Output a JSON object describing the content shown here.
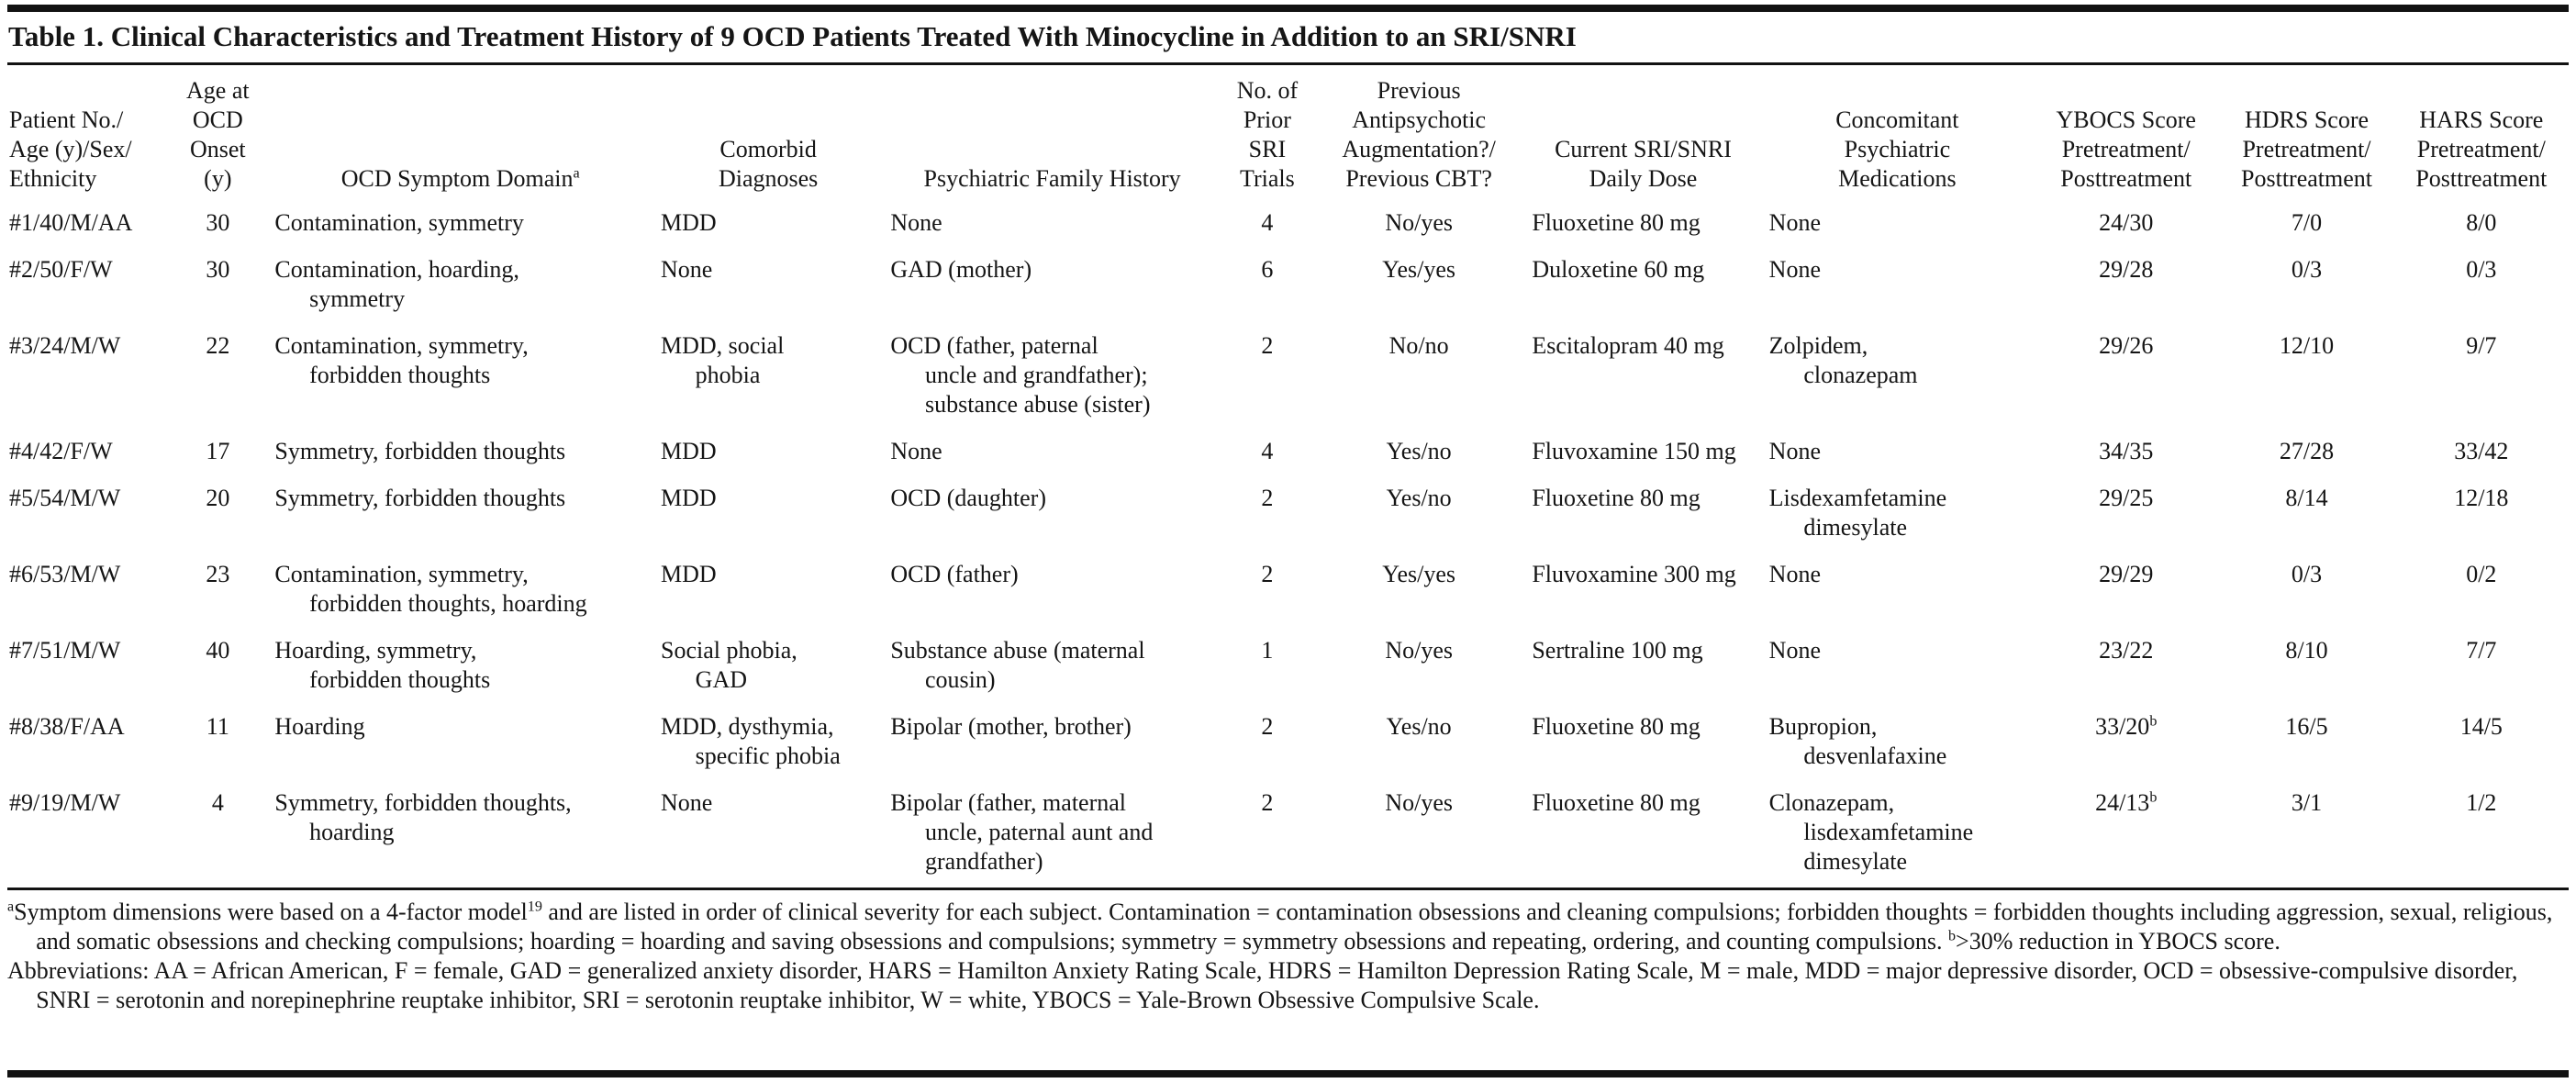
{
  "title": "Table 1. Clinical Characteristics and Treatment History of 9 OCD Patients Treated With Minocycline in Addition to an SRI/SNRI",
  "table": {
    "columns": [
      {
        "id": "patient",
        "label": "Patient No./\nAge (y)/Sex/\nEthnicity",
        "align": "left",
        "header_align": "left"
      },
      {
        "id": "age-onset",
        "label": "Age at\nOCD\nOnset\n(y)",
        "align": "center",
        "header_align": "center"
      },
      {
        "id": "symptom-domain",
        "label": "OCD Symptom Domain^{a}",
        "align": "left",
        "header_align": "center"
      },
      {
        "id": "comorbid",
        "label": "Comorbid\nDiagnoses",
        "align": "left",
        "header_align": "center"
      },
      {
        "id": "family-history",
        "label": "Psychiatric Family History",
        "align": "left",
        "header_align": "center"
      },
      {
        "id": "sri-trials",
        "label": "No. of\nPrior\nSRI\nTrials",
        "align": "center",
        "header_align": "center"
      },
      {
        "id": "prev-augment",
        "label": "Previous\nAntipsychotic\nAugmentation?/\nPrevious CBT?",
        "align": "center",
        "header_align": "center"
      },
      {
        "id": "current-dose",
        "label": "Current SRI/SNRI\nDaily Dose",
        "align": "left",
        "header_align": "center"
      },
      {
        "id": "concomitant",
        "label": "Concomitant\nPsychiatric\nMedications",
        "align": "left",
        "header_align": "center"
      },
      {
        "id": "ybocs",
        "label": "YBOCS Score\nPretreatment/\nPosttreatment",
        "align": "center",
        "header_align": "center"
      },
      {
        "id": "hdrs",
        "label": "HDRS Score\nPretreatment/\nPosttreatment",
        "align": "center",
        "header_align": "center"
      },
      {
        "id": "hars",
        "label": "HARS Score\nPretreatment/\nPosttreatment",
        "align": "center",
        "header_align": "center"
      }
    ],
    "rows": [
      [
        "#1/40/M/AA",
        "30",
        "Contamination, symmetry",
        "MDD",
        "None",
        "4",
        "No/yes",
        "Fluoxetine 80 mg",
        "None",
        "24/30",
        "7/0",
        "8/0"
      ],
      [
        "#2/50/F/W",
        "30",
        "Contamination, hoarding,\nsymmetry",
        "None",
        "GAD (mother)",
        "6",
        "Yes/yes",
        "Duloxetine 60 mg",
        "None",
        "29/28",
        "0/3",
        "0/3"
      ],
      [
        "#3/24/M/W",
        "22",
        "Contamination, symmetry,\nforbidden thoughts",
        "MDD, social\nphobia",
        "OCD (father, paternal\nuncle and grandfather);\nsubstance abuse (sister)",
        "2",
        "No/no",
        "Escitalopram 40 mg",
        "Zolpidem,\nclonazepam",
        "29/26",
        "12/10",
        "9/7"
      ],
      [
        "#4/42/F/W",
        "17",
        "Symmetry, forbidden thoughts",
        "MDD",
        "None",
        "4",
        "Yes/no",
        "Fluvoxamine 150 mg",
        "None",
        "34/35",
        "27/28",
        "33/42"
      ],
      [
        "#5/54/M/W",
        "20",
        "Symmetry, forbidden thoughts",
        "MDD",
        "OCD (daughter)",
        "2",
        "Yes/no",
        "Fluoxetine 80 mg",
        "Lisdexamfetamine\ndimesylate",
        "29/25",
        "8/14",
        "12/18"
      ],
      [
        "#6/53/M/W",
        "23",
        "Contamination, symmetry,\nforbidden thoughts, hoarding",
        "MDD",
        "OCD (father)",
        "2",
        "Yes/yes",
        "Fluvoxamine 300 mg",
        "None",
        "29/29",
        "0/3",
        "0/2"
      ],
      [
        "#7/51/M/W",
        "40",
        "Hoarding, symmetry,\nforbidden thoughts",
        "Social phobia,\nGAD",
        "Substance abuse (maternal\ncousin)",
        "1",
        "No/yes",
        "Sertraline 100 mg",
        "None",
        "23/22",
        "8/10",
        "7/7"
      ],
      [
        "#8/38/F/AA",
        "11",
        "Hoarding",
        "MDD, dysthymia,\nspecific phobia",
        "Bipolar (mother, brother)",
        "2",
        "Yes/no",
        "Fluoxetine 80 mg",
        "Bupropion,\ndesvenlafaxine",
        "33/20^{b}",
        "16/5",
        "14/5"
      ],
      [
        "#9/19/M/W",
        "4",
        "Symmetry, forbidden thoughts,\nhoarding",
        "None",
        "Bipolar (father, maternal\nuncle, paternal aunt and\ngrandfather)",
        "2",
        "No/yes",
        "Fluoxetine 80 mg",
        "Clonazepam,\nlisdexamfetamine\ndimesylate",
        "24/13^{b}",
        "3/1",
        "1/2"
      ]
    ]
  },
  "footnotes": {
    "symptom_note": "^{a}Symptom dimensions were based on a 4-factor model^{19} and are listed in order of clinical severity for each subject. Contamination = contamination obsessions and cleaning compulsions; forbidden thoughts = forbidden thoughts including aggression, sexual, religious, and somatic obsessions and checking compulsions; hoarding = hoarding and saving obsessions and compulsions; symmetry = symmetry obsessions and repeating, ordering, and counting compulsions. ^{b}>30% reduction in YBOCS score.",
    "abbreviations": "Abbreviations: AA = African American, F = female, GAD = generalized anxiety disorder, HARS = Hamilton Anxiety Rating Scale, HDRS = Hamilton Depression Rating Scale, M = male, MDD = major depressive disorder, OCD = obsessive-compulsive disorder, SNRI = serotonin and norepinephrine reuptake inhibitor, SRI = serotonin reuptake inhibitor, W = white, YBOCS = Yale-Brown Obsessive Compulsive Scale."
  }
}
